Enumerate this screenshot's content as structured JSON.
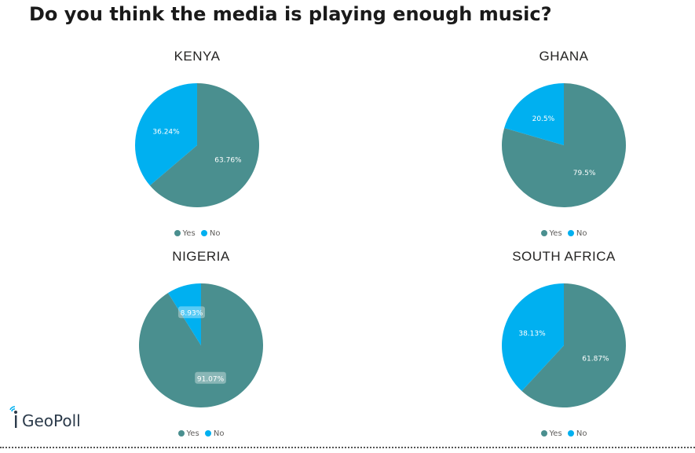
{
  "title": "Do you think the media is playing enough music?",
  "colors": {
    "yes": "#4a8f8f",
    "no": "#00b0f0"
  },
  "legend": {
    "yes": "Yes",
    "no": "No"
  },
  "logo": {
    "text": "GeoPoll"
  },
  "chart_data": [
    {
      "type": "pie",
      "title": "KENYA",
      "labels": [
        "Yes",
        "No"
      ],
      "values": [
        63.76,
        36.24
      ],
      "value_labels": [
        "63.76%",
        "36.24%"
      ],
      "legend_position": "bottom"
    },
    {
      "type": "pie",
      "title": "GHANA",
      "labels": [
        "Yes",
        "No"
      ],
      "values": [
        79.5,
        20.5
      ],
      "value_labels": [
        "79.5%",
        "20.5%"
      ],
      "legend_position": "bottom"
    },
    {
      "type": "pie",
      "title": "NIGERIA",
      "labels": [
        "Yes",
        "No"
      ],
      "values": [
        91.07,
        8.93
      ],
      "value_labels": [
        "91.07%",
        "8.93%"
      ],
      "legend_position": "bottom"
    },
    {
      "type": "pie",
      "title": "SOUTH AFRICA",
      "labels": [
        "Yes",
        "No"
      ],
      "values": [
        61.87,
        38.13
      ],
      "value_labels": [
        "61.87%",
        "38.13%"
      ],
      "legend_position": "bottom"
    }
  ]
}
